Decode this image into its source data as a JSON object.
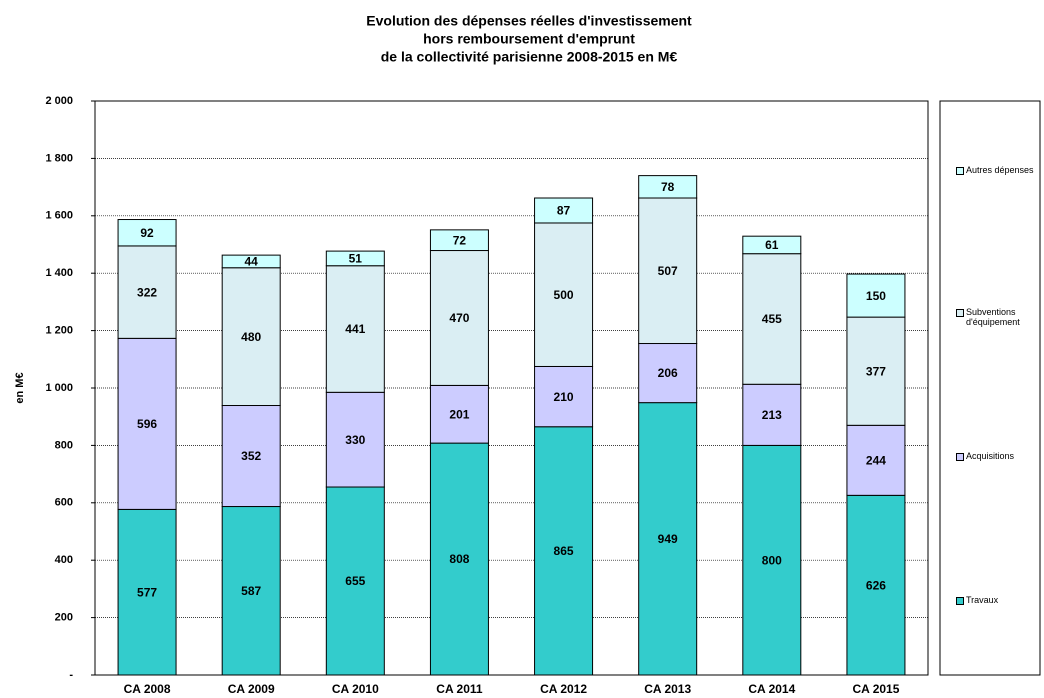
{
  "chart_data": {
    "type": "stacked-bar",
    "title": [
      "Evolution des dépenses réelles d'investissement",
      "hors remboursement d'emprunt",
      "de la collectivité parisienne 2008-2015  en M€"
    ],
    "y_label": "en M€",
    "categories": [
      "CA 2008",
      "CA 2009",
      "CA 2010",
      "CA 2011",
      "CA 2012",
      "CA 2013",
      "CA 2014",
      "CA 2015"
    ],
    "series": [
      {
        "name": "Travaux",
        "color": "#33cccc",
        "values": [
          577,
          587,
          655,
          808,
          865,
          949,
          800,
          626
        ]
      },
      {
        "name": "Acquisitions",
        "color": "#ccccff",
        "values": [
          596,
          352,
          330,
          201,
          210,
          206,
          213,
          244
        ]
      },
      {
        "name": "Subventions d'équipement",
        "color": "#daeef3",
        "values": [
          322,
          480,
          441,
          470,
          500,
          507,
          455,
          377
        ]
      },
      {
        "name": "Autres dépenses",
        "color": "#ccffff",
        "values": [
          92,
          44,
          51,
          72,
          87,
          78,
          61,
          150
        ]
      }
    ],
    "ylim": [
      0,
      2000
    ],
    "yticks": [
      {
        "value": 0,
        "label": "-"
      },
      200,
      400,
      600,
      800,
      {
        "value": 1000,
        "label": "1 000"
      },
      {
        "value": 1200,
        "label": "1 200"
      },
      {
        "value": 1400,
        "label": "1 400"
      },
      {
        "value": 1600,
        "label": "1 600"
      },
      {
        "value": 1800,
        "label": "1 800"
      },
      {
        "value": 2000,
        "label": "2 000"
      }
    ],
    "grid": true,
    "legend": "right"
  }
}
